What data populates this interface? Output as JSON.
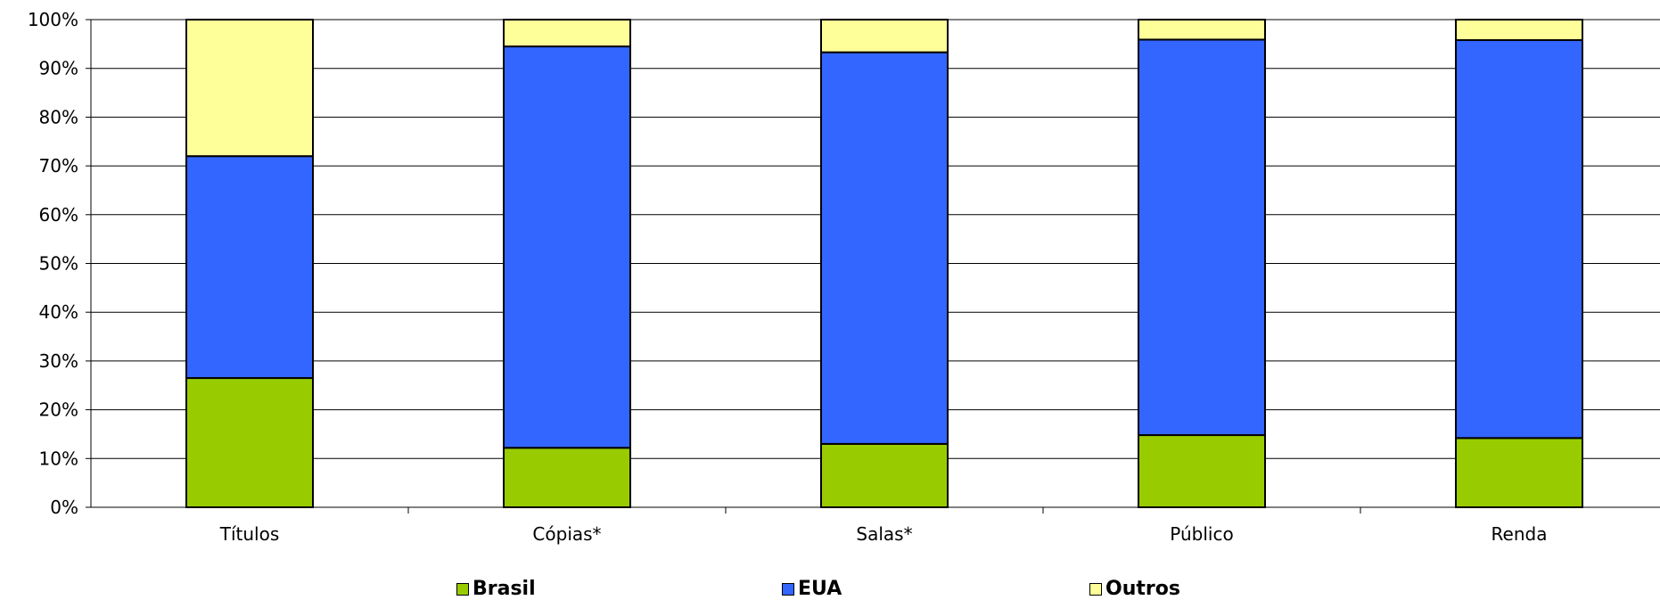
{
  "chart_data": {
    "type": "bar",
    "stacked": true,
    "percent": true,
    "categories": [
      "Títulos",
      "Cópias*",
      "Salas*",
      "Público",
      "Renda"
    ],
    "series": [
      {
        "name": "Brasil",
        "color": "#99cc00",
        "values": [
          26.5,
          12.2,
          13.0,
          14.8,
          14.2
        ]
      },
      {
        "name": "EUA",
        "color": "#3366ff",
        "values": [
          45.5,
          82.3,
          80.3,
          81.1,
          81.6
        ]
      },
      {
        "name": "Outros",
        "color": "#ffff99",
        "values": [
          28.0,
          5.5,
          6.7,
          4.1,
          4.2
        ]
      }
    ],
    "yticks": [
      "0%",
      "10%",
      "20%",
      "30%",
      "40%",
      "50%",
      "60%",
      "70%",
      "80%",
      "90%",
      "100%"
    ],
    "ylim": [
      0,
      100
    ],
    "grid": true,
    "legend_position": "bottom"
  }
}
